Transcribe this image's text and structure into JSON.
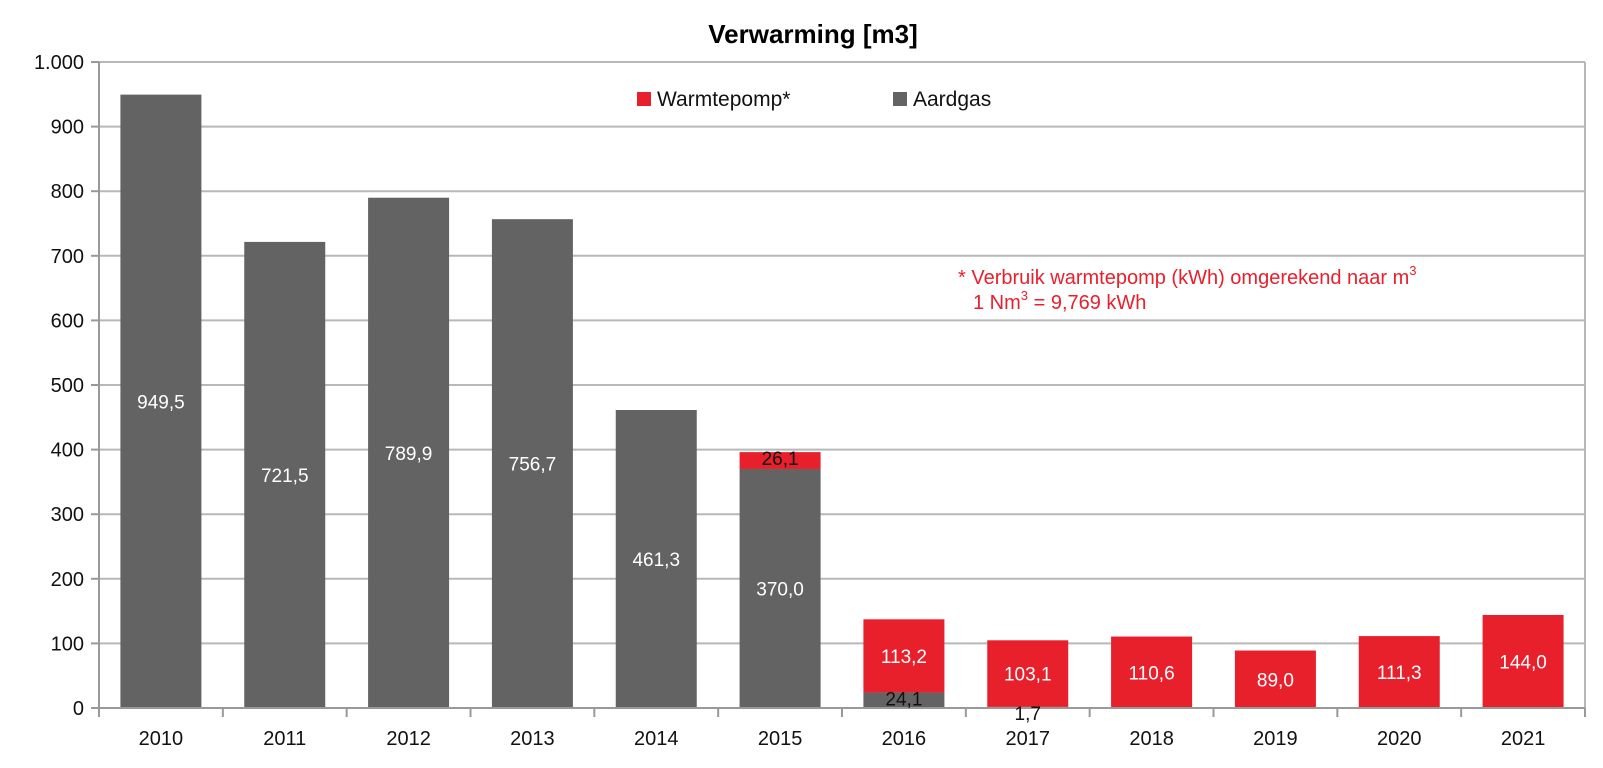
{
  "colors": {
    "warmtepomp": "#e8202c",
    "aardgas": "#636363",
    "grid": "#b8b8b8",
    "axis": "#999999",
    "note": "#e8202c",
    "label_on_dark": "#ffffff",
    "label_outside": "#111111"
  },
  "chart_data": {
    "type": "bar",
    "stacked": true,
    "title": "Verwarming [m3]",
    "xlabel": "",
    "ylabel": "",
    "ylim": [
      0,
      1000
    ],
    "grid": true,
    "legend_position": "top-center",
    "categories": [
      "2010",
      "2011",
      "2012",
      "2013",
      "2014",
      "2015",
      "2016",
      "2017",
      "2018",
      "2019",
      "2020",
      "2021"
    ],
    "y_ticks": [
      {
        "value": 0,
        "label": "0"
      },
      {
        "value": 100,
        "label": "100"
      },
      {
        "value": 200,
        "label": "200"
      },
      {
        "value": 300,
        "label": "300"
      },
      {
        "value": 400,
        "label": "400"
      },
      {
        "value": 500,
        "label": "500"
      },
      {
        "value": 600,
        "label": "600"
      },
      {
        "value": 700,
        "label": "700"
      },
      {
        "value": 800,
        "label": "800"
      },
      {
        "value": 900,
        "label": "900"
      },
      {
        "value": 1000,
        "label": "1.000"
      }
    ],
    "series": [
      {
        "name": "Aardgas",
        "color_key": "aardgas",
        "values": [
          949.5,
          721.5,
          789.9,
          756.7,
          461.3,
          370.0,
          24.1,
          1.7,
          0,
          0,
          0,
          0
        ],
        "labels": [
          "949,5",
          "721,5",
          "789,9",
          "756,7",
          "461,3",
          "370,0",
          "24,1",
          "1,7",
          "",
          "",
          "",
          ""
        ]
      },
      {
        "name": "Warmtepomp*",
        "color_key": "warmtepomp",
        "values": [
          0,
          0,
          0,
          0,
          0,
          26.1,
          113.2,
          103.1,
          110.6,
          89.0,
          111.3,
          144.0
        ],
        "labels": [
          "",
          "",
          "",
          "",
          "",
          "26,1",
          "113,2",
          "103,1",
          "110,6",
          "89,0",
          "111,3",
          "144,0"
        ]
      }
    ],
    "legend": [
      {
        "name": "Warmtepomp*",
        "color_key": "warmtepomp"
      },
      {
        "name": "Aardgas",
        "color_key": "aardgas"
      }
    ],
    "annotations": {
      "note_line1_prefix": "* Verbruik warmtepomp (kWh) omgerekend naar m",
      "note_line1_sup": "3",
      "note_line2_prefix": "1 Nm",
      "note_line2_sup": "3",
      "note_line2_suffix": " = 9,769 kWh"
    }
  }
}
